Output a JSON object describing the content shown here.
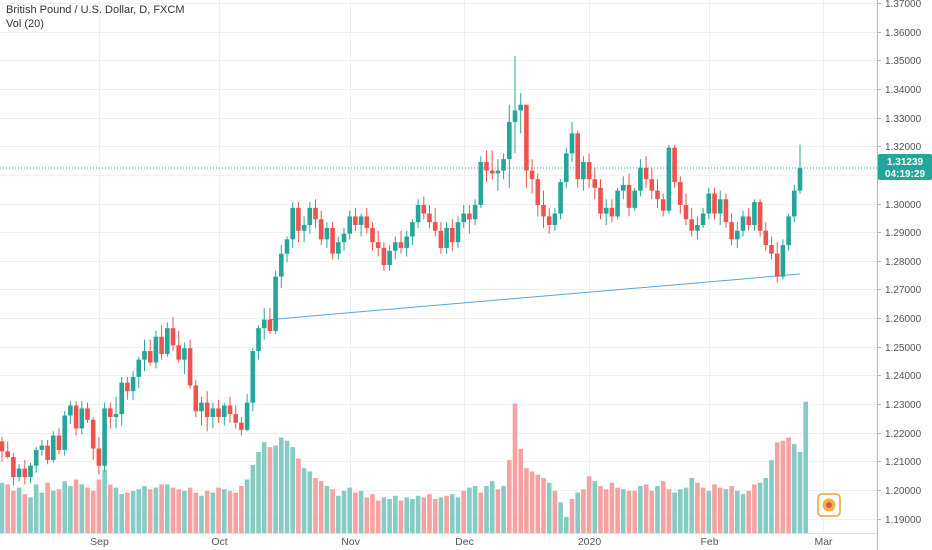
{
  "legend": {
    "title": "British Pound / U.S. Dollar, D, FXCM",
    "volume": "Vol (20)"
  },
  "colors": {
    "up": "#26a69a",
    "down": "#ef5350",
    "vol_up": "#86cbc4",
    "vol_down": "#f5a3a2",
    "grid": "#eef0f2",
    "trendline": "#5ba3d8",
    "price_line": "#26a69a",
    "badge": "#f0a030"
  },
  "price_tag": "1.31239",
  "timer_tag": "04:19:29",
  "chart_data": {
    "type": "candlestick",
    "instrument": "British Pound / U.S. Dollar",
    "ylim": [
      1.185,
      1.37
    ],
    "y_ticks": [
      "1.19000",
      "1.20000",
      "1.21000",
      "1.22000",
      "1.23000",
      "1.24000",
      "1.25000",
      "1.26000",
      "1.27000",
      "1.28000",
      "1.29000",
      "1.30000",
      "1.31000",
      "1.32000",
      "1.33000",
      "1.34000",
      "1.35000",
      "1.36000",
      "1.37000"
    ],
    "x_ticks": [
      {
        "label": "Sep",
        "index": 17
      },
      {
        "label": "Oct",
        "index": 38
      },
      {
        "label": "Nov",
        "index": 61
      },
      {
        "label": "Dec",
        "index": 81
      },
      {
        "label": "2020",
        "index": 103
      },
      {
        "label": "Feb",
        "index": 124
      },
      {
        "label": "Mar",
        "index": 144
      }
    ],
    "last_price": 1.31239,
    "trendline": {
      "from": {
        "index": 47,
        "price": 1.2595
      },
      "to": {
        "index": 140,
        "price": 1.2754
      }
    },
    "ohlc": [
      [
        1.217,
        1.2185,
        1.21,
        1.2135
      ],
      [
        1.2135,
        1.217,
        1.211,
        1.2115
      ],
      [
        1.2115,
        1.213,
        1.2015,
        1.2045
      ],
      [
        1.2045,
        1.209,
        1.203,
        1.2075
      ],
      [
        1.2075,
        1.2105,
        1.202,
        1.2045
      ],
      [
        1.2045,
        1.2095,
        1.2025,
        1.2085
      ],
      [
        1.2085,
        1.215,
        1.206,
        1.214
      ],
      [
        1.214,
        1.2175,
        1.212,
        1.2155
      ],
      [
        1.2155,
        1.2175,
        1.209,
        1.2105
      ],
      [
        1.2105,
        1.2205,
        1.2095,
        1.219
      ],
      [
        1.219,
        1.2215,
        1.2125,
        1.214
      ],
      [
        1.214,
        1.2275,
        1.212,
        1.226
      ],
      [
        1.226,
        1.231,
        1.223,
        1.2295
      ],
      [
        1.2295,
        1.231,
        1.219,
        1.2215
      ],
      [
        1.2215,
        1.231,
        1.2195,
        1.2285
      ],
      [
        1.2285,
        1.2305,
        1.2235,
        1.2245
      ],
      [
        1.2245,
        1.2255,
        1.2105,
        1.2145
      ],
      [
        1.2145,
        1.2185,
        1.2055,
        1.2085
      ],
      [
        1.2085,
        1.2305,
        1.2065,
        1.2285
      ],
      [
        1.2285,
        1.2305,
        1.2215,
        1.2255
      ],
      [
        1.2255,
        1.2325,
        1.2215,
        1.2265
      ],
      [
        1.2265,
        1.2395,
        1.2225,
        1.2375
      ],
      [
        1.2375,
        1.2395,
        1.2315,
        1.2345
      ],
      [
        1.2345,
        1.2415,
        1.2315,
        1.2395
      ],
      [
        1.2395,
        1.2465,
        1.2355,
        1.2455
      ],
      [
        1.2455,
        1.2525,
        1.2415,
        1.2485
      ],
      [
        1.2485,
        1.2525,
        1.2435,
        1.2445
      ],
      [
        1.2445,
        1.2555,
        1.2425,
        1.2535
      ],
      [
        1.2535,
        1.2575,
        1.2455,
        1.2475
      ],
      [
        1.2475,
        1.2585,
        1.2465,
        1.2565
      ],
      [
        1.2565,
        1.2605,
        1.2485,
        1.2505
      ],
      [
        1.2505,
        1.2555,
        1.2445,
        1.2455
      ],
      [
        1.2455,
        1.2515,
        1.2405,
        1.2495
      ],
      [
        1.2495,
        1.2525,
        1.2355,
        1.2365
      ],
      [
        1.2365,
        1.2385,
        1.2255,
        1.2275
      ],
      [
        1.2275,
        1.2325,
        1.2225,
        1.2305
      ],
      [
        1.2305,
        1.2345,
        1.2205,
        1.2255
      ],
      [
        1.2255,
        1.2305,
        1.2215,
        1.2285
      ],
      [
        1.2285,
        1.2315,
        1.2235,
        1.2255
      ],
      [
        1.2255,
        1.2305,
        1.2225,
        1.2295
      ],
      [
        1.2295,
        1.2325,
        1.2235,
        1.2265
      ],
      [
        1.2265,
        1.2295,
        1.2215,
        1.2235
      ],
      [
        1.2235,
        1.2255,
        1.219,
        1.221
      ],
      [
        1.221,
        1.2335,
        1.2205,
        1.2305
      ],
      [
        1.2305,
        1.2495,
        1.2275,
        1.2485
      ],
      [
        1.2485,
        1.2575,
        1.2455,
        1.2565
      ],
      [
        1.2565,
        1.2635,
        1.2525,
        1.2595
      ],
      [
        1.2595,
        1.2635,
        1.2545,
        1.2555
      ],
      [
        1.2555,
        1.2765,
        1.2545,
        1.2745
      ],
      [
        1.2745,
        1.2855,
        1.2705,
        1.2825
      ],
      [
        1.2825,
        1.2885,
        1.2795,
        1.2875
      ],
      [
        1.2875,
        1.3005,
        1.2845,
        1.2985
      ],
      [
        1.2985,
        1.3005,
        1.2865,
        1.2905
      ],
      [
        1.2905,
        1.2955,
        1.2865,
        1.2925
      ],
      [
        1.2925,
        1.3005,
        1.2895,
        1.2985
      ],
      [
        1.2985,
        1.3015,
        1.2915,
        1.2945
      ],
      [
        1.2945,
        1.2975,
        1.2855,
        1.2875
      ],
      [
        1.2875,
        1.2935,
        1.2845,
        1.2915
      ],
      [
        1.2915,
        1.2935,
        1.2805,
        1.2825
      ],
      [
        1.2825,
        1.2885,
        1.2805,
        1.2865
      ],
      [
        1.2865,
        1.2915,
        1.2835,
        1.2895
      ],
      [
        1.2895,
        1.2975,
        1.2875,
        1.2955
      ],
      [
        1.2955,
        1.2985,
        1.2905,
        1.2925
      ],
      [
        1.2925,
        1.2965,
        1.2885,
        1.2955
      ],
      [
        1.2955,
        1.2985,
        1.2895,
        1.2915
      ],
      [
        1.2915,
        1.2935,
        1.2835,
        1.2865
      ],
      [
        1.2865,
        1.2905,
        1.2815,
        1.2845
      ],
      [
        1.2845,
        1.2865,
        1.2765,
        1.2785
      ],
      [
        1.2785,
        1.2855,
        1.2765,
        1.2835
      ],
      [
        1.2835,
        1.2885,
        1.2805,
        1.2865
      ],
      [
        1.2865,
        1.2905,
        1.2825,
        1.2845
      ],
      [
        1.2845,
        1.2905,
        1.2815,
        1.2885
      ],
      [
        1.2885,
        1.2945,
        1.2855,
        1.2935
      ],
      [
        1.2935,
        1.3015,
        1.2915,
        1.2995
      ],
      [
        1.2995,
        1.3025,
        1.2945,
        1.2965
      ],
      [
        1.2965,
        1.2995,
        1.2915,
        1.2935
      ],
      [
        1.2935,
        1.2985,
        1.2885,
        1.2905
      ],
      [
        1.2905,
        1.2935,
        1.2825,
        1.2845
      ],
      [
        1.2845,
        1.2935,
        1.2825,
        1.2915
      ],
      [
        1.2915,
        1.2945,
        1.2835,
        1.2865
      ],
      [
        1.2865,
        1.2955,
        1.2845,
        1.2935
      ],
      [
        1.2935,
        1.2995,
        1.2915,
        1.2965
      ],
      [
        1.2965,
        1.2995,
        1.2895,
        1.2945
      ],
      [
        1.2945,
        1.3015,
        1.2925,
        1.2995
      ],
      [
        1.2995,
        1.3165,
        1.2985,
        1.3145
      ],
      [
        1.3145,
        1.3185,
        1.3075,
        1.3115
      ],
      [
        1.3115,
        1.3185,
        1.3085,
        1.3105
      ],
      [
        1.3105,
        1.3155,
        1.3045,
        1.3115
      ],
      [
        1.3115,
        1.3175,
        1.3085,
        1.3155
      ],
      [
        1.3155,
        1.3345,
        1.3055,
        1.3285
      ],
      [
        1.3285,
        1.3515,
        1.3175,
        1.3325
      ],
      [
        1.3325,
        1.3385,
        1.3245,
        1.3345
      ],
      [
        1.3345,
        1.3345,
        1.3055,
        1.3115
      ],
      [
        1.3115,
        1.3155,
        1.3035,
        1.3085
      ],
      [
        1.3085,
        1.3105,
        1.2955,
        1.2995
      ],
      [
        1.2995,
        1.3045,
        1.2915,
        1.2955
      ],
      [
        1.2955,
        1.2985,
        1.2895,
        1.2925
      ],
      [
        1.2925,
        1.2985,
        1.2905,
        1.2965
      ],
      [
        1.2965,
        1.3085,
        1.2945,
        1.3075
      ],
      [
        1.3075,
        1.3195,
        1.3055,
        1.3175
      ],
      [
        1.3175,
        1.3285,
        1.3145,
        1.3245
      ],
      [
        1.3245,
        1.3255,
        1.3055,
        1.3085
      ],
      [
        1.3085,
        1.3165,
        1.3045,
        1.3145
      ],
      [
        1.3145,
        1.3175,
        1.3055,
        1.3085
      ],
      [
        1.3085,
        1.3125,
        1.3015,
        1.3055
      ],
      [
        1.3055,
        1.3085,
        1.2945,
        1.2965
      ],
      [
        1.2965,
        1.3015,
        1.2925,
        1.2985
      ],
      [
        1.2985,
        1.3015,
        1.2935,
        1.2955
      ],
      [
        1.2955,
        1.3055,
        1.2945,
        1.3045
      ],
      [
        1.3045,
        1.3095,
        1.3015,
        1.3065
      ],
      [
        1.3065,
        1.3105,
        1.2955,
        1.2985
      ],
      [
        1.2985,
        1.3055,
        1.2975,
        1.3045
      ],
      [
        1.3045,
        1.3155,
        1.3025,
        1.3125
      ],
      [
        1.3125,
        1.3165,
        1.3055,
        1.3085
      ],
      [
        1.3085,
        1.3125,
        1.3015,
        1.3045
      ],
      [
        1.3045,
        1.3085,
        1.2985,
        1.3015
      ],
      [
        1.3015,
        1.3035,
        1.2955,
        1.2975
      ],
      [
        1.2975,
        1.3205,
        1.2965,
        1.3195
      ],
      [
        1.3195,
        1.3205,
        1.3055,
        1.3075
      ],
      [
        1.3075,
        1.3095,
        1.2965,
        1.2995
      ],
      [
        1.2995,
        1.3035,
        1.2925,
        1.2945
      ],
      [
        1.2945,
        1.2985,
        1.2885,
        1.2905
      ],
      [
        1.2905,
        1.2955,
        1.2875,
        1.2925
      ],
      [
        1.2925,
        1.2985,
        1.2915,
        1.2965
      ],
      [
        1.2965,
        1.3055,
        1.2945,
        1.3035
      ],
      [
        1.3035,
        1.3055,
        1.2945,
        1.2965
      ],
      [
        1.2965,
        1.3045,
        1.2925,
        1.3015
      ],
      [
        1.3015,
        1.3035,
        1.2915,
        1.2935
      ],
      [
        1.2935,
        1.2965,
        1.2855,
        1.2875
      ],
      [
        1.2875,
        1.2935,
        1.2845,
        1.2905
      ],
      [
        1.2905,
        1.2975,
        1.2885,
        1.2955
      ],
      [
        1.2955,
        1.2985,
        1.2905,
        1.2925
      ],
      [
        1.2925,
        1.3015,
        1.2905,
        1.3005
      ],
      [
        1.3005,
        1.3015,
        1.2885,
        1.2905
      ],
      [
        1.2905,
        1.2935,
        1.2835,
        1.2855
      ],
      [
        1.2855,
        1.2885,
        1.2805,
        1.2825
      ],
      [
        1.2825,
        1.2865,
        1.2725,
        1.2745
      ],
      [
        1.2745,
        1.2875,
        1.2735,
        1.2855
      ],
      [
        1.2855,
        1.2965,
        1.2835,
        1.2955
      ],
      [
        1.2955,
        1.3065,
        1.2935,
        1.3045
      ],
      [
        1.3045,
        1.3205,
        1.3035,
        1.3124
      ]
    ],
    "volume": [
      [
        3.1,
        0
      ],
      [
        3.0,
        1
      ],
      [
        2.6,
        1
      ],
      [
        2.8,
        0
      ],
      [
        2.4,
        1
      ],
      [
        2.2,
        0
      ],
      [
        3.0,
        0
      ],
      [
        2.5,
        0
      ],
      [
        3.1,
        1
      ],
      [
        2.6,
        0
      ],
      [
        2.7,
        1
      ],
      [
        3.2,
        0
      ],
      [
        2.9,
        0
      ],
      [
        3.3,
        1
      ],
      [
        3.0,
        0
      ],
      [
        2.8,
        1
      ],
      [
        2.6,
        1
      ],
      [
        3.3,
        1
      ],
      [
        3.9,
        0
      ],
      [
        3.0,
        1
      ],
      [
        2.8,
        0
      ],
      [
        2.4,
        0
      ],
      [
        2.5,
        1
      ],
      [
        2.6,
        0
      ],
      [
        2.7,
        0
      ],
      [
        2.9,
        0
      ],
      [
        2.7,
        1
      ],
      [
        2.8,
        0
      ],
      [
        3.0,
        1
      ],
      [
        3.0,
        0
      ],
      [
        2.8,
        1
      ],
      [
        2.7,
        1
      ],
      [
        2.6,
        0
      ],
      [
        2.8,
        1
      ],
      [
        2.5,
        1
      ],
      [
        2.3,
        0
      ],
      [
        2.6,
        1
      ],
      [
        2.5,
        0
      ],
      [
        2.8,
        1
      ],
      [
        2.7,
        0
      ],
      [
        2.6,
        1
      ],
      [
        2.5,
        1
      ],
      [
        2.9,
        1
      ],
      [
        3.3,
        0
      ],
      [
        4.2,
        0
      ],
      [
        5.0,
        0
      ],
      [
        5.6,
        0
      ],
      [
        5.3,
        1
      ],
      [
        5.4,
        0
      ],
      [
        5.9,
        0
      ],
      [
        5.7,
        0
      ],
      [
        5.3,
        0
      ],
      [
        4.6,
        1
      ],
      [
        4.0,
        0
      ],
      [
        3.8,
        0
      ],
      [
        3.4,
        1
      ],
      [
        3.2,
        1
      ],
      [
        2.9,
        0
      ],
      [
        2.7,
        1
      ],
      [
        2.3,
        0
      ],
      [
        2.6,
        0
      ],
      [
        2.8,
        0
      ],
      [
        2.5,
        1
      ],
      [
        2.6,
        0
      ],
      [
        2.2,
        1
      ],
      [
        2.4,
        1
      ],
      [
        2.0,
        1
      ],
      [
        2.2,
        0
      ],
      [
        2.1,
        0
      ],
      [
        2.3,
        0
      ],
      [
        2.0,
        1
      ],
      [
        2.2,
        0
      ],
      [
        2.1,
        0
      ],
      [
        2.3,
        0
      ],
      [
        2.2,
        1
      ],
      [
        2.4,
        1
      ],
      [
        2.1,
        1
      ],
      [
        2.2,
        0
      ],
      [
        2.3,
        1
      ],
      [
        2.4,
        0
      ],
      [
        2.2,
        0
      ],
      [
        2.6,
        1
      ],
      [
        2.8,
        0
      ],
      [
        2.9,
        0
      ],
      [
        2.5,
        1
      ],
      [
        2.9,
        0
      ],
      [
        3.2,
        0
      ],
      [
        2.7,
        1
      ],
      [
        2.9,
        0
      ],
      [
        4.5,
        1
      ],
      [
        8.0,
        1
      ],
      [
        5.2,
        1
      ],
      [
        4.0,
        1
      ],
      [
        3.8,
        1
      ],
      [
        3.6,
        1
      ],
      [
        3.4,
        1
      ],
      [
        3.1,
        0
      ],
      [
        2.6,
        1
      ],
      [
        1.9,
        0
      ],
      [
        1.0,
        0
      ],
      [
        2.1,
        1
      ],
      [
        2.5,
        0
      ],
      [
        2.7,
        1
      ],
      [
        3.5,
        1
      ],
      [
        3.2,
        0
      ],
      [
        2.9,
        1
      ],
      [
        2.7,
        1
      ],
      [
        3.1,
        1
      ],
      [
        2.8,
        1
      ],
      [
        2.7,
        0
      ],
      [
        2.6,
        1
      ],
      [
        2.6,
        1
      ],
      [
        2.9,
        0
      ],
      [
        3.0,
        1
      ],
      [
        2.6,
        1
      ],
      [
        2.9,
        0
      ],
      [
        3.2,
        1
      ],
      [
        2.7,
        1
      ],
      [
        2.5,
        0
      ],
      [
        2.7,
        0
      ],
      [
        2.8,
        0
      ],
      [
        3.4,
        0
      ],
      [
        3.1,
        1
      ],
      [
        2.8,
        1
      ],
      [
        2.6,
        0
      ],
      [
        3.0,
        1
      ],
      [
        2.8,
        1
      ],
      [
        2.7,
        0
      ],
      [
        2.9,
        1
      ],
      [
        2.6,
        0
      ],
      [
        2.4,
        0
      ],
      [
        2.6,
        1
      ],
      [
        3.0,
        1
      ],
      [
        3.1,
        0
      ],
      [
        3.4,
        0
      ],
      [
        4.5,
        0
      ],
      [
        5.6,
        1
      ],
      [
        5.7,
        1
      ],
      [
        5.9,
        1
      ],
      [
        5.5,
        0
      ],
      [
        5.0,
        0
      ],
      [
        8.1,
        0
      ]
    ]
  }
}
